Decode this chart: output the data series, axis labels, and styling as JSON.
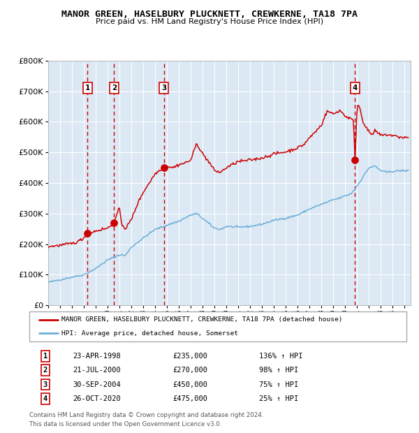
{
  "title": "MANOR GREEN, HASELBURY PLUCKNETT, CREWKERNE, TA18 7PA",
  "subtitle": "Price paid vs. HM Land Registry's House Price Index (HPI)",
  "legend_line1": "MANOR GREEN, HASELBURY PLUCKNETT, CREWKERNE, TA18 7PA (detached house)",
  "legend_line2": "HPI: Average price, detached house, Somerset",
  "footer1": "Contains HM Land Registry data © Crown copyright and database right 2024.",
  "footer2": "This data is licensed under the Open Government Licence v3.0.",
  "transactions": [
    {
      "num": 1,
      "date": "23-APR-1998",
      "price": 235000,
      "pct": "136%",
      "dir": "↑",
      "x_year": 1998.3
    },
    {
      "num": 2,
      "date": "21-JUL-2000",
      "price": 270000,
      "pct": "98%",
      "dir": "↑",
      "x_year": 2000.55
    },
    {
      "num": 3,
      "date": "30-SEP-2004",
      "price": 450000,
      "pct": "75%",
      "dir": "↑",
      "x_year": 2004.75
    },
    {
      "num": 4,
      "date": "26-OCT-2020",
      "price": 475000,
      "pct": "25%",
      "dir": "↑",
      "x_year": 2020.82
    }
  ],
  "hpi_color": "#6baed6",
  "price_color": "#cc0000",
  "vline_color": "#cc0000",
  "bg_color": "#dce9f5",
  "ylim": [
    0,
    800000
  ],
  "xlim_start": 1995.0,
  "xlim_end": 2025.5,
  "table_rows": [
    [
      "1",
      "23-APR-1998",
      "£235,000",
      "136% ↑ HPI"
    ],
    [
      "2",
      "21-JUL-2000",
      "£270,000",
      "98% ↑ HPI"
    ],
    [
      "3",
      "30-SEP-2004",
      "£450,000",
      "75% ↑ HPI"
    ],
    [
      "4",
      "26-OCT-2020",
      "£475,000",
      "25% ↑ HPI"
    ]
  ]
}
